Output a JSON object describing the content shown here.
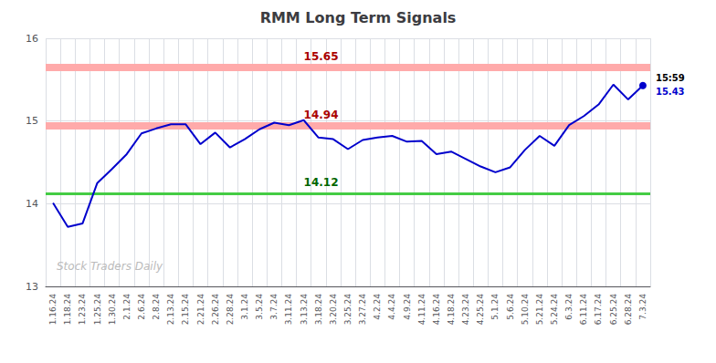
{
  "chart_data": {
    "type": "line",
    "title": "RMM Long Term Signals",
    "categories": [
      "1.16.24",
      "1.18.24",
      "1.23.24",
      "1.25.24",
      "1.30.24",
      "2.1.24",
      "2.6.24",
      "2.8.24",
      "2.13.24",
      "2.15.24",
      "2.21.24",
      "2.26.24",
      "2.28.24",
      "3.1.24",
      "3.5.24",
      "3.7.24",
      "3.11.24",
      "3.13.24",
      "3.18.24",
      "3.20.24",
      "3.25.24",
      "3.27.24",
      "4.2.24",
      "4.4.24",
      "4.9.24",
      "4.11.24",
      "4.16.24",
      "4.18.24",
      "4.23.24",
      "4.25.24",
      "5.1.24",
      "5.6.24",
      "5.10.24",
      "5.21.24",
      "5.24.24",
      "6.3.24",
      "6.11.24",
      "6.17.24",
      "6.25.24",
      "6.28.24",
      "7.3.24"
    ],
    "values": [
      14.01,
      13.72,
      13.76,
      14.25,
      14.42,
      14.6,
      14.85,
      14.91,
      14.96,
      14.96,
      14.72,
      14.86,
      14.68,
      14.78,
      14.9,
      14.98,
      14.95,
      15.01,
      14.8,
      14.78,
      14.66,
      14.77,
      14.8,
      14.82,
      14.75,
      14.76,
      14.6,
      14.63,
      14.54,
      14.45,
      14.38,
      14.44,
      14.65,
      14.82,
      14.7,
      14.95,
      15.06,
      15.2,
      15.44,
      15.26,
      15.43
    ],
    "color": "#0000cc",
    "ylim": [
      13,
      16
    ],
    "yticks": [
      13,
      14,
      15,
      16
    ],
    "grid": true,
    "hlines": [
      {
        "value": 15.65,
        "label": "15.65",
        "color": "#ffaaaa",
        "label_color": "#aa0000"
      },
      {
        "value": 14.94,
        "label": "14.94",
        "color": "#ffaaaa",
        "label_color": "#aa0000"
      },
      {
        "value": 14.12,
        "label": "14.12",
        "color": "#44cc44",
        "label_color": "#006600"
      }
    ],
    "annotations": [
      {
        "text": "15:59",
        "x": "7.3.24"
      },
      {
        "text": "15.43",
        "x": "7.3.24",
        "y": 15.43
      },
      {
        "text": "Stock Traders Daily",
        "color": "#bbbbbb"
      }
    ]
  }
}
